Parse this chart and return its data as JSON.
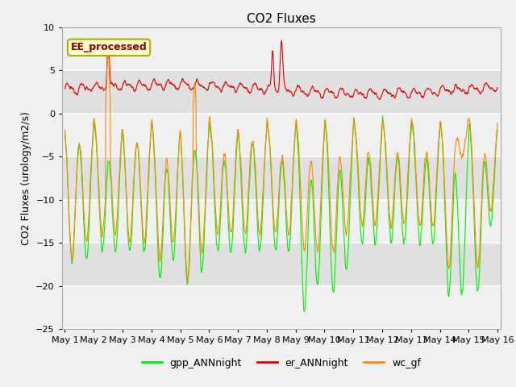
{
  "title": "CO2 Fluxes",
  "ylabel": "CO2 Fluxes (urology/m2/s)",
  "ylim": [
    -25,
    10
  ],
  "yticks": [
    -25,
    -20,
    -15,
    -10,
    -5,
    0,
    5,
    10
  ],
  "n_days": 15,
  "n_points_per_day": 96,
  "annotation_text": "EE_processed",
  "annotation_color": "#8B0000",
  "annotation_bg": "#FFFFCC",
  "annotation_border": "#AAAA00",
  "colors": {
    "gpp": "#00EE00",
    "er": "#DD0000",
    "wc": "#FF8800"
  },
  "line_width": 0.8,
  "legend_labels": [
    "gpp_ANNnight",
    "er_ANNnight",
    "wc_gf"
  ],
  "background_plot": "#EBEBEB",
  "background_fig": "#F0F0F0",
  "grid_color": "#FFFFFF",
  "title_fontsize": 11,
  "axis_fontsize": 9,
  "tick_fontsize": 8
}
